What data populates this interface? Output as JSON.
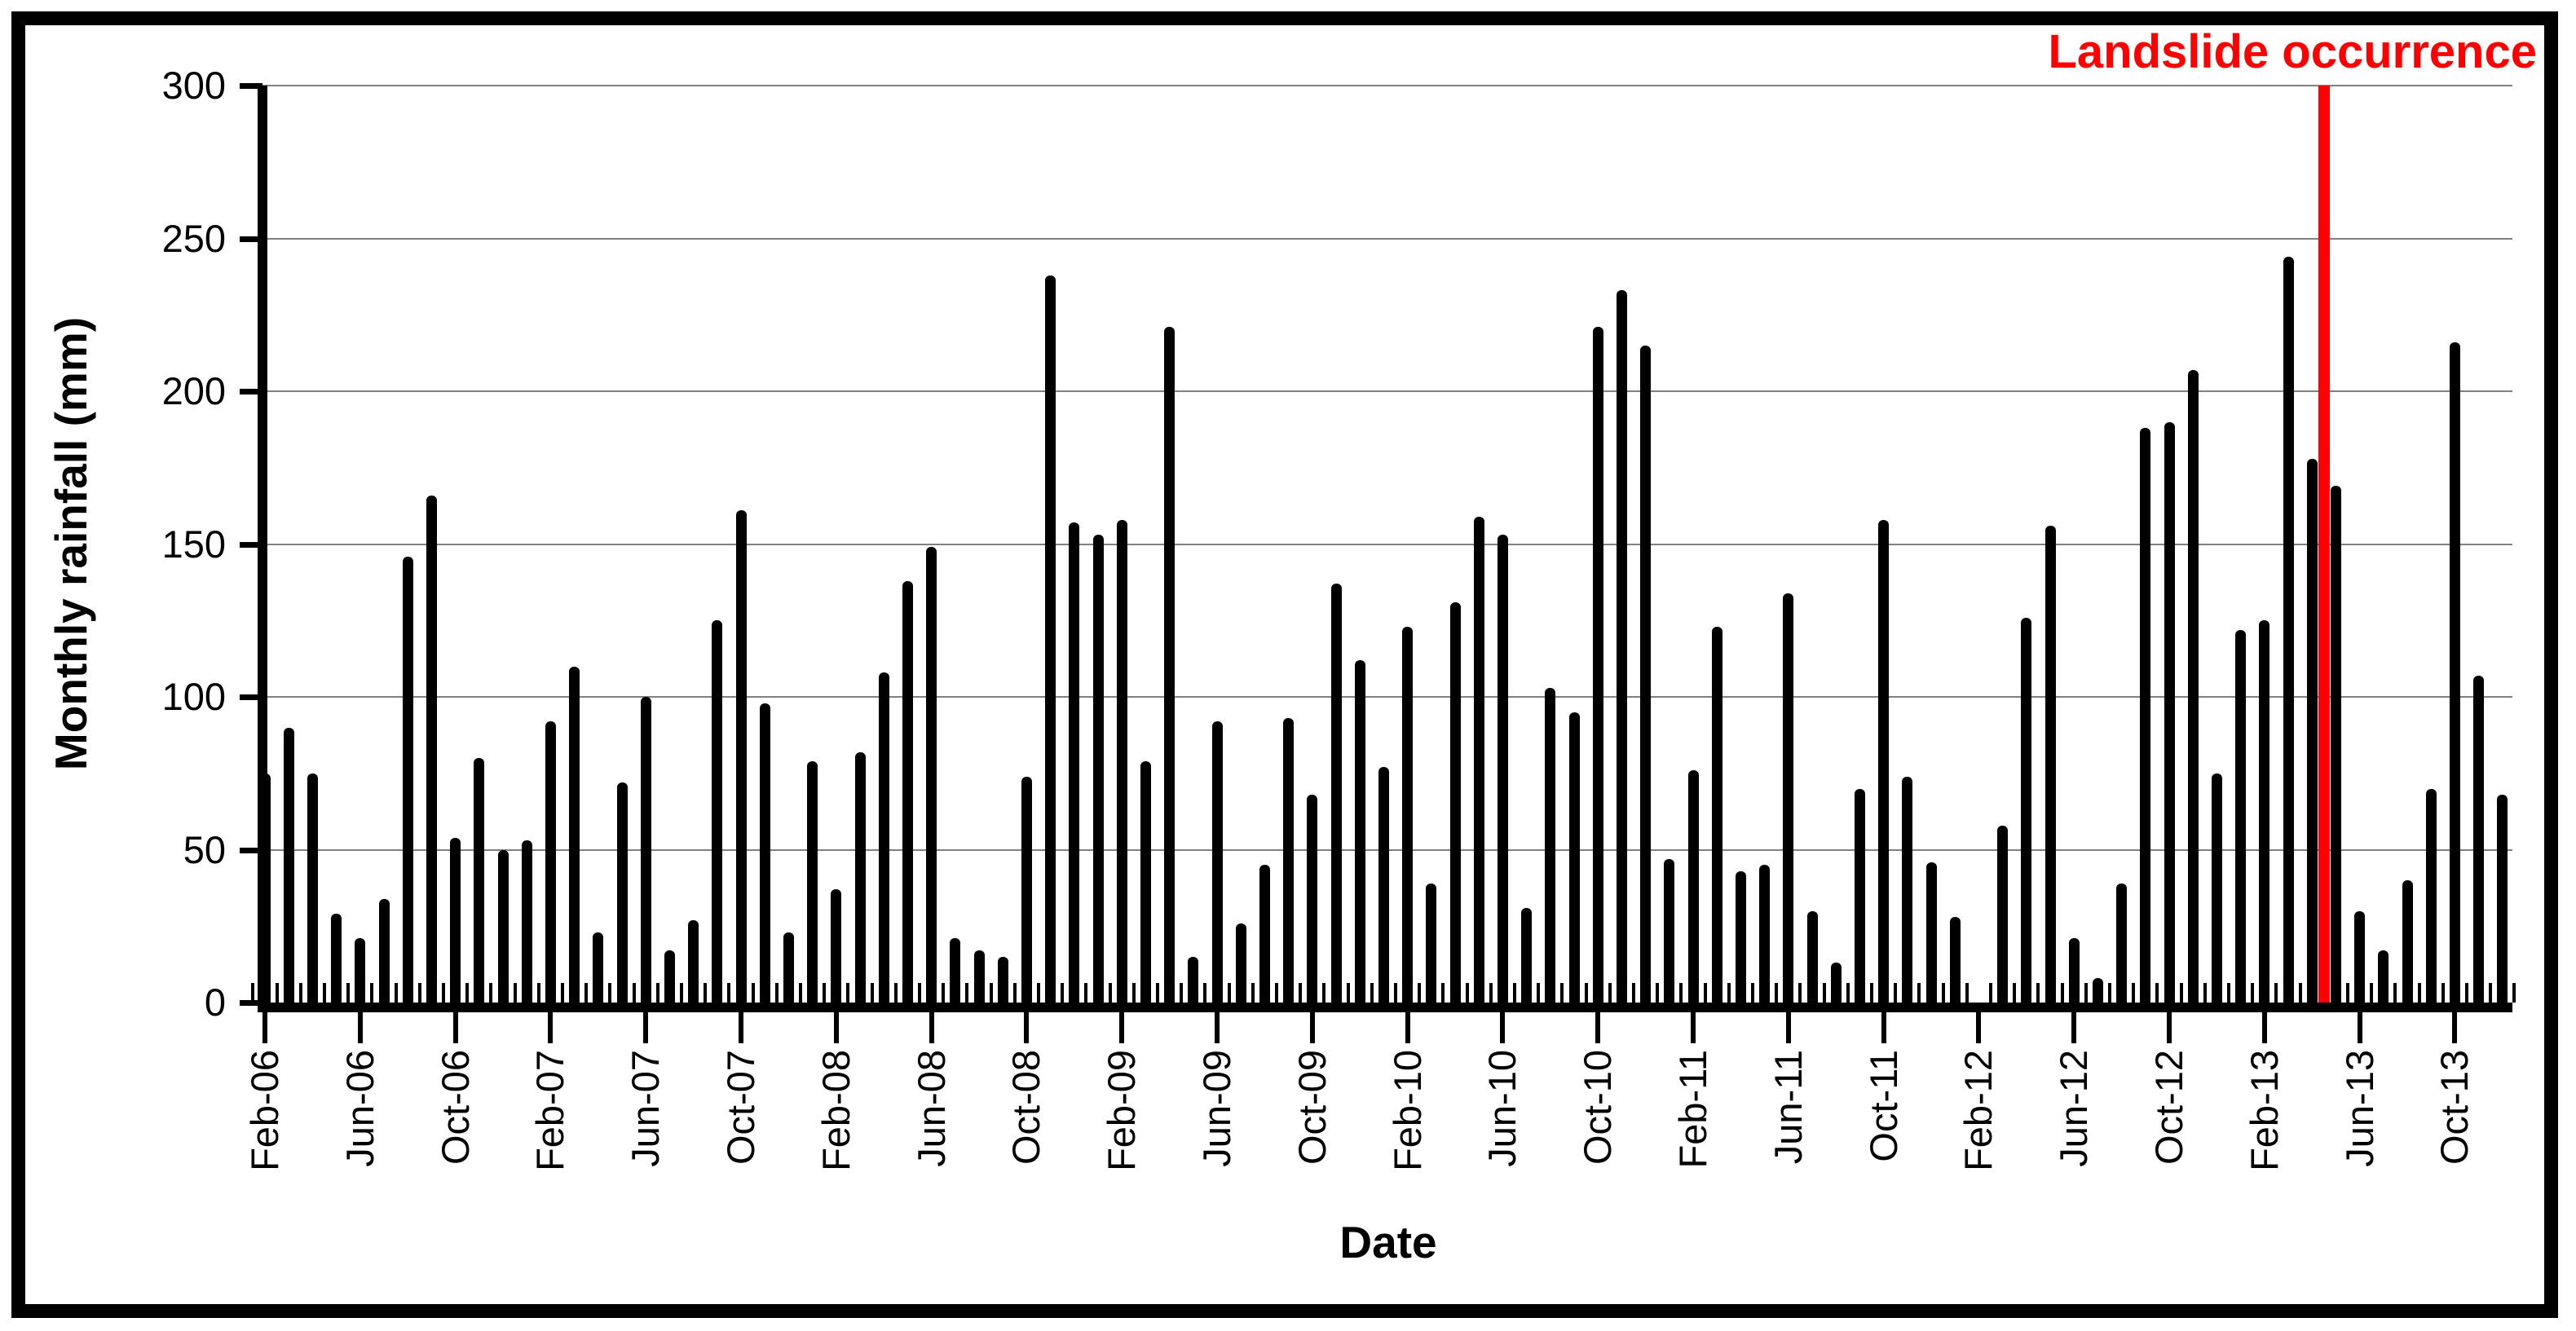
{
  "page": {
    "background_color": "#ffffff",
    "frame_color": "#000000"
  },
  "chart_data": {
    "type": "bar",
    "title": "",
    "xlabel": "Date",
    "ylabel": "Monthly rainfall (mm)",
    "ylim": [
      0,
      300
    ],
    "ytick_step": 50,
    "yticks": [
      0,
      50,
      100,
      150,
      200,
      250,
      300
    ],
    "grid": true,
    "gridline_color": "#808080",
    "bar_color": "#000000",
    "x_tick_label_interval": 4,
    "x_tick_labels_shown": [
      "Feb-06",
      "Jun-06",
      "Oct-06",
      "Feb-07",
      "Jun-07",
      "Oct-07",
      "Feb-08",
      "Jun-08",
      "Oct-08",
      "Feb-09",
      "Jun-09",
      "Oct-09",
      "Feb-10",
      "Jun-10",
      "Oct-10",
      "Feb-11",
      "Jun-11",
      "Oct-11",
      "Feb-12",
      "Jun-12",
      "Oct-12",
      "Feb-13",
      "Jun-13",
      "Oct-13"
    ],
    "categories": [
      "Feb-06",
      "Mar-06",
      "Apr-06",
      "May-06",
      "Jun-06",
      "Jul-06",
      "Aug-06",
      "Sep-06",
      "Oct-06",
      "Nov-06",
      "Dec-06",
      "Jan-07",
      "Feb-07",
      "Mar-07",
      "Apr-07",
      "May-07",
      "Jun-07",
      "Jul-07",
      "Aug-07",
      "Sep-07",
      "Oct-07",
      "Nov-07",
      "Dec-07",
      "Jan-08",
      "Feb-08",
      "Mar-08",
      "Apr-08",
      "May-08",
      "Jun-08",
      "Jul-08",
      "Aug-08",
      "Sep-08",
      "Oct-08",
      "Nov-08",
      "Dec-08",
      "Jan-09",
      "Feb-09",
      "Mar-09",
      "Apr-09",
      "May-09",
      "Jun-09",
      "Jul-09",
      "Aug-09",
      "Sep-09",
      "Oct-09",
      "Nov-09",
      "Dec-09",
      "Jan-10",
      "Feb-10",
      "Mar-10",
      "Apr-10",
      "May-10",
      "Jun-10",
      "Jul-10",
      "Aug-10",
      "Sep-10",
      "Oct-10",
      "Nov-10",
      "Dec-10",
      "Jan-11",
      "Feb-11",
      "Mar-11",
      "Apr-11",
      "May-11",
      "Jun-11",
      "Jul-11",
      "Aug-11",
      "Sep-11",
      "Oct-11",
      "Nov-11",
      "Dec-11",
      "Jan-12",
      "Feb-12",
      "Mar-12",
      "Apr-12",
      "May-12",
      "Jun-12",
      "Jul-12",
      "Aug-12",
      "Sep-12",
      "Oct-12",
      "Nov-12",
      "Dec-12",
      "Jan-13",
      "Feb-13",
      "Mar-13",
      "Apr-13",
      "May-13",
      "Jun-13",
      "Jul-13",
      "Aug-13",
      "Sep-13",
      "Oct-13",
      "Nov-13",
      "Dec-13"
    ],
    "values": [
      75,
      90,
      75,
      29,
      21,
      34,
      146,
      166,
      54,
      80,
      50,
      53,
      92,
      110,
      23,
      72,
      100,
      17,
      27,
      125,
      161,
      98,
      23,
      79,
      37,
      82,
      108,
      138,
      149,
      21,
      17,
      15,
      74,
      238,
      157,
      153,
      158,
      79,
      221,
      15,
      92,
      26,
      45,
      93,
      68,
      137,
      112,
      77,
      123,
      39,
      131,
      159,
      153,
      31,
      103,
      95,
      221,
      233,
      215,
      47,
      76,
      123,
      43,
      45,
      134,
      30,
      13,
      70,
      158,
      74,
      46,
      28,
      0,
      58,
      126,
      156,
      21,
      8,
      39,
      188,
      190,
      207,
      75,
      122,
      125,
      244,
      178,
      169,
      30,
      17,
      40,
      70,
      216,
      107,
      68
    ],
    "annotation": {
      "label": "Landslide occurrence",
      "color": "#ff0000",
      "between_months": [
        "Apr-13",
        "May-13"
      ]
    }
  }
}
